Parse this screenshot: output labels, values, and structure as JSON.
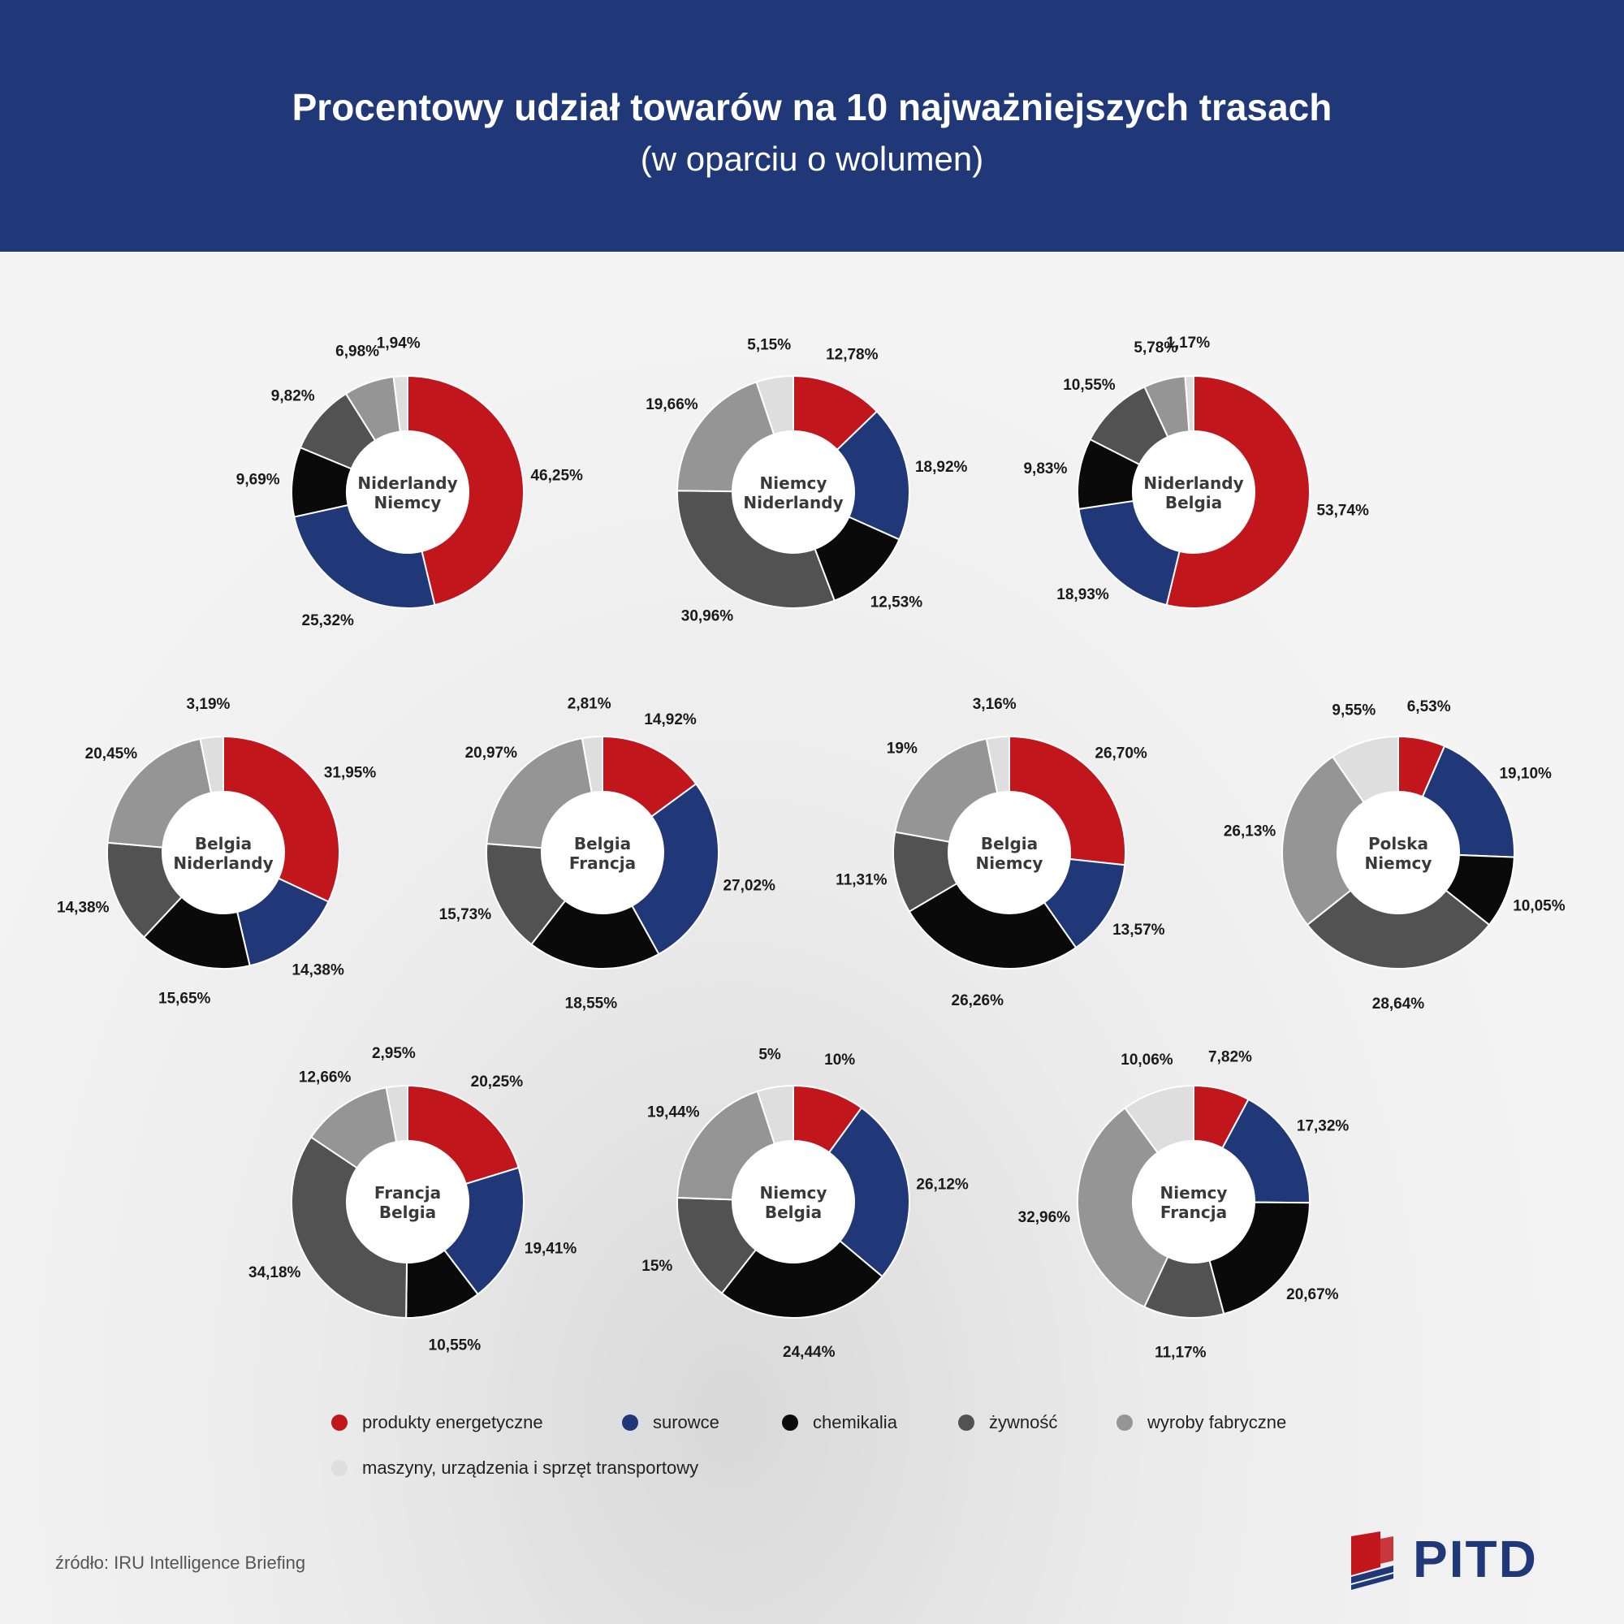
{
  "header": {
    "title": "Procentowy udział towarów na 10 najważniejszych trasach",
    "subtitle": "(w oparciu o wolumen)"
  },
  "colors": {
    "produkty energetyczne": "#c0161c",
    "surowce": "#203877",
    "chemikalia": "#0a0a0a",
    "żywność": "#525252",
    "wyroby fabryczne": "#959595",
    "maszyny, urządzenia i sprzęt transportowy": "#dedede"
  },
  "chart_data": [
    {
      "type": "pie",
      "title": "Niderlandy Niemcy",
      "route": [
        "Niderlandy",
        "Niemcy"
      ],
      "categories": [
        "produkty energetyczne",
        "surowce",
        "chemikalia",
        "żywność",
        "wyroby fabryczne",
        "maszyny, urządzenia i sprzęt transportowy"
      ],
      "values": [
        46.25,
        25.32,
        9.69,
        9.82,
        6.98,
        1.94
      ],
      "labels": [
        "46,25%",
        "25,32%",
        "9,69%",
        "9,82%",
        "6,98%",
        "1,94%"
      ]
    },
    {
      "type": "pie",
      "title": "Niemcy Niderlandy",
      "route": [
        "Niemcy",
        "Niderlandy"
      ],
      "categories": [
        "produkty energetyczne",
        "surowce",
        "chemikalia",
        "żywność",
        "wyroby fabryczne",
        "maszyny, urządzenia i sprzęt transportowy"
      ],
      "values": [
        12.78,
        18.92,
        12.53,
        30.96,
        19.66,
        5.15
      ],
      "labels": [
        "12,78%",
        "18,92%",
        "12,53%",
        "30,96%",
        "19,66%",
        "5,15%"
      ]
    },
    {
      "type": "pie",
      "title": "Niderlandy Belgia",
      "route": [
        "Niderlandy",
        "Belgia"
      ],
      "categories": [
        "produkty energetyczne",
        "surowce",
        "chemikalia",
        "żywność",
        "wyroby fabryczne",
        "maszyny, urządzenia i sprzęt transportowy"
      ],
      "values": [
        53.74,
        18.93,
        9.83,
        10.55,
        5.78,
        1.17
      ],
      "labels": [
        "53,74%",
        "18,93%",
        "9,83%",
        "10,55%",
        "5,78%",
        "1,17%"
      ]
    },
    {
      "type": "pie",
      "title": "Belgia Niderlandy",
      "route": [
        "Belgia",
        "Niderlandy"
      ],
      "categories": [
        "produkty energetyczne",
        "surowce",
        "chemikalia",
        "żywność",
        "wyroby fabryczne",
        "maszyny, urządzenia i sprzęt transportowy"
      ],
      "values": [
        31.95,
        14.38,
        15.65,
        14.38,
        20.45,
        3.19
      ],
      "labels": [
        "31,95%",
        "14,38%",
        "15,65%",
        "14,38%",
        "20,45%",
        "3,19%"
      ]
    },
    {
      "type": "pie",
      "title": "Belgia Francja",
      "route": [
        "Belgia",
        "Francja"
      ],
      "categories": [
        "produkty energetyczne",
        "surowce",
        "chemikalia",
        "żywność",
        "wyroby fabryczne",
        "maszyny, urządzenia i sprzęt transportowy"
      ],
      "values": [
        14.92,
        27.02,
        18.55,
        15.73,
        20.97,
        2.81
      ],
      "labels": [
        "14,92%",
        "27,02%",
        "18,55%",
        "15,73%",
        "20,97%",
        "2,81%"
      ]
    },
    {
      "type": "pie",
      "title": "Belgia Niemcy",
      "route": [
        "Belgia",
        "Niemcy"
      ],
      "categories": [
        "produkty energetyczne",
        "surowce",
        "chemikalia",
        "żywność",
        "wyroby fabryczne",
        "maszyny, urządzenia i sprzęt transportowy"
      ],
      "values": [
        26.7,
        13.57,
        26.26,
        11.31,
        19,
        3.16
      ],
      "labels": [
        "26,70%",
        "13,57%",
        "26,26%",
        "11,31%",
        "19%",
        "3,16%"
      ]
    },
    {
      "type": "pie",
      "title": "Polska Niemcy",
      "route": [
        "Polska",
        "Niemcy"
      ],
      "categories": [
        "produkty energetyczne",
        "surowce",
        "chemikalia",
        "żywność",
        "wyroby fabryczne",
        "maszyny, urządzenia i sprzęt transportowy"
      ],
      "values": [
        6.53,
        19.1,
        10.05,
        28.64,
        26.13,
        9.55
      ],
      "labels": [
        "6,53%",
        "19,10%",
        "10,05%",
        "28,64%",
        "26,13%",
        "9,55%"
      ]
    },
    {
      "type": "pie",
      "title": "Francja Belgia",
      "route": [
        "Francja",
        "Belgia"
      ],
      "categories": [
        "produkty energetyczne",
        "surowce",
        "chemikalia",
        "żywność",
        "wyroby fabryczne",
        "maszyny, urządzenia i sprzęt transportowy"
      ],
      "values": [
        20.25,
        19.41,
        10.55,
        34.18,
        12.66,
        2.95
      ],
      "labels": [
        "20,25%",
        "19,41%",
        "10,55%",
        "34,18%",
        "12,66%",
        "2,95%"
      ]
    },
    {
      "type": "pie",
      "title": "Niemcy Belgia",
      "route": [
        "Niemcy",
        "Belgia"
      ],
      "categories": [
        "produkty energetyczne",
        "surowce",
        "chemikalia",
        "żywność",
        "wyroby fabryczne",
        "maszyny, urządzenia i sprzęt transportowy"
      ],
      "values": [
        10,
        26.12,
        24.44,
        15,
        19.44,
        5
      ],
      "labels": [
        "10%",
        "26,12%",
        "24,44%",
        "15%",
        "19,44%",
        "5%"
      ]
    },
    {
      "type": "pie",
      "title": "Niemcy Francja",
      "route": [
        "Niemcy",
        "Francja"
      ],
      "categories": [
        "produkty energetyczne",
        "surowce",
        "chemikalia",
        "żywność",
        "wyroby fabryczne",
        "maszyny, urządzenia i sprzęt transportowy"
      ],
      "values": [
        7.82,
        17.32,
        20.67,
        11.17,
        32.96,
        10.06
      ],
      "labels": [
        "7,82%",
        "17,32%",
        "20,67%",
        "11,17%",
        "32,96%",
        "10,06%"
      ]
    }
  ],
  "legend": {
    "items": [
      {
        "label": "produkty energetyczne",
        "color": "#c0161c"
      },
      {
        "label": "surowce",
        "color": "#203877"
      },
      {
        "label": "chemikalia",
        "color": "#0a0a0a"
      },
      {
        "label": "żywność",
        "color": "#525252"
      },
      {
        "label": "wyroby fabryczne",
        "color": "#959595"
      },
      {
        "label": "maszyny, urządzenia i sprzęt transportowy",
        "color": "#dedede"
      }
    ]
  },
  "footer": {
    "source": "źródło: IRU Intelligence Briefing",
    "logo_text": "PITD"
  }
}
